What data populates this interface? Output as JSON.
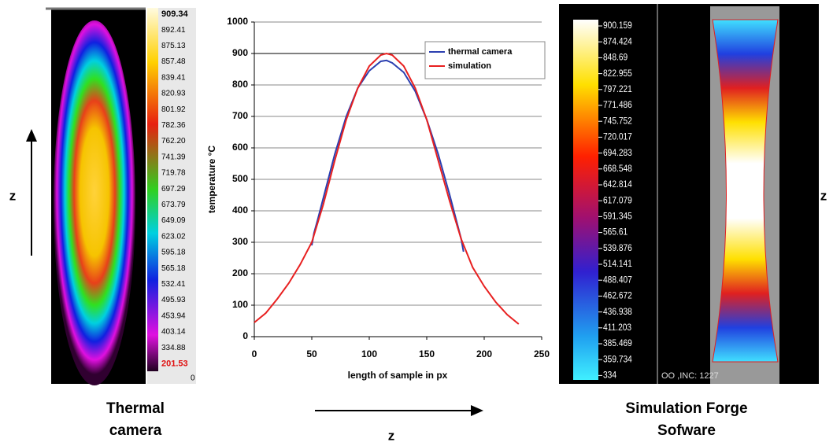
{
  "chart_data": {
    "type": "line",
    "x_label": "length of sample in px",
    "y_label": "temperature °C",
    "xlim": [
      0,
      250
    ],
    "xticks": [
      0,
      50,
      100,
      150,
      200,
      250
    ],
    "ylim": [
      0,
      1000
    ],
    "yticks": [
      0,
      100,
      200,
      300,
      400,
      500,
      600,
      700,
      800,
      900,
      1000
    ],
    "grid": true,
    "legend": "upper-right",
    "series": [
      {
        "name": "thermal camera",
        "color": "#2b3fb0",
        "x": [
          50,
          52,
          55,
          60,
          70,
          80,
          90,
          100,
          110,
          115,
          120,
          130,
          140,
          150,
          160,
          170,
          180,
          182
        ],
        "values": [
          290,
          330,
          370,
          440,
          580,
          700,
          790,
          845,
          875,
          878,
          870,
          840,
          780,
          690,
          580,
          450,
          310,
          270
        ]
      },
      {
        "name": "simulation",
        "color": "#e82020",
        "x": [
          0,
          10,
          20,
          30,
          40,
          50,
          60,
          70,
          80,
          90,
          100,
          110,
          115,
          120,
          130,
          140,
          150,
          160,
          170,
          180,
          190,
          200,
          210,
          220,
          230
        ],
        "values": [
          45,
          75,
          120,
          170,
          230,
          300,
          420,
          560,
          690,
          790,
          860,
          895,
          900,
          895,
          860,
          790,
          690,
          560,
          430,
          310,
          220,
          160,
          110,
          70,
          40
        ]
      }
    ]
  },
  "thermal": {
    "scale_labels": [
      "909.34",
      "892.41",
      "875.13",
      "857.48",
      "839.41",
      "820.93",
      "801.92",
      "782.36",
      "762.20",
      "741.39",
      "719.78",
      "697.29",
      "673.79",
      "649.09",
      "623.02",
      "595.18",
      "565.18",
      "532.41",
      "495.93",
      "453.94",
      "403.14",
      "334.88",
      "201.53"
    ],
    "scale_footer": "0",
    "caption": [
      "Thermal",
      "camera"
    ],
    "axis_label": "z"
  },
  "simulation": {
    "scale_labels": [
      "900.159",
      "874.424",
      "848.69",
      "822.955",
      "797.221",
      "771.486",
      "745.752",
      "720.017",
      "694.283",
      "668.548",
      "642.814",
      "617.079",
      "591.345",
      "565.61",
      "539.876",
      "514.141",
      "488.407",
      "462.672",
      "436.938",
      "411.203",
      "385.469",
      "359.734",
      "334"
    ],
    "status": "OO ,INC: 1227",
    "caption": [
      "Simulation Forge",
      "Sofware"
    ],
    "axis_label": "z"
  },
  "bottom_axis_label": "z"
}
